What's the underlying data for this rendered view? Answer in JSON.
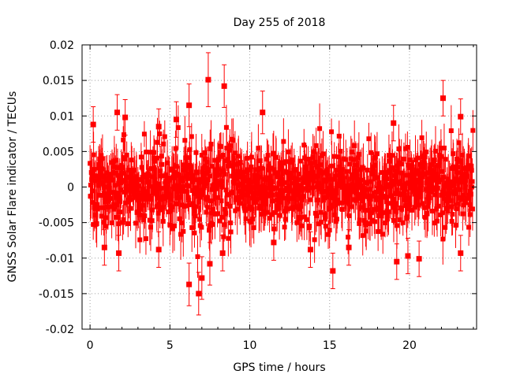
{
  "chart_data": {
    "type": "scatter",
    "title": "Day 255 of 2018",
    "xlabel": "GPS time / hours",
    "ylabel": "GNSS Solar Flare indicator / TECUs",
    "xlim": [
      -0.5,
      24.2
    ],
    "ylim": [
      -0.02,
      0.02
    ],
    "x_ticks": [
      0,
      5,
      10,
      15,
      20
    ],
    "x_tick_labels": [
      "0",
      "5",
      "10",
      "15",
      "20"
    ],
    "y_ticks": [
      -0.02,
      -0.015,
      -0.01,
      -0.005,
      0,
      0.005,
      0.01,
      0.015,
      0.02
    ],
    "y_tick_labels": [
      "-0.02",
      "-0.015",
      "-0.01",
      "-0.005",
      "0",
      "0.005",
      "0.01",
      "0.015",
      "0.02"
    ],
    "grid": true,
    "marker": "square",
    "colors": {
      "series": "#ff0000",
      "grid": "#a0a0a0",
      "axis": "#000000"
    },
    "series": [
      {
        "name": "solar flare indicator",
        "error_bar_typical": 0.003,
        "highlight_points": [
          {
            "x": 7.4,
            "y": 0.0151,
            "err": 0.0038
          },
          {
            "x": 8.4,
            "y": 0.0142,
            "err": 0.003
          },
          {
            "x": 22.1,
            "y": 0.0125,
            "err": 0.0025
          },
          {
            "x": 6.2,
            "y": 0.0115,
            "err": 0.003
          },
          {
            "x": 10.8,
            "y": 0.0105,
            "err": 0.003
          },
          {
            "x": 1.7,
            "y": 0.0105,
            "err": 0.0025
          },
          {
            "x": 23.2,
            "y": 0.0099,
            "err": 0.0025
          },
          {
            "x": 5.4,
            "y": 0.0095,
            "err": 0.0025
          },
          {
            "x": 2.2,
            "y": 0.0098,
            "err": 0.0025
          },
          {
            "x": 0.2,
            "y": 0.0088,
            "err": 0.0025
          },
          {
            "x": 4.3,
            "y": 0.0085,
            "err": 0.0025
          },
          {
            "x": 19.0,
            "y": 0.009,
            "err": 0.0025
          },
          {
            "x": 15.2,
            "y": -0.0118,
            "err": 0.0025
          },
          {
            "x": 6.2,
            "y": -0.0137,
            "err": 0.003
          },
          {
            "x": 6.8,
            "y": -0.015,
            "err": 0.003
          },
          {
            "x": 7.0,
            "y": -0.0128,
            "err": 0.003
          },
          {
            "x": 7.5,
            "y": -0.0108,
            "err": 0.003
          },
          {
            "x": 8.3,
            "y": -0.0093,
            "err": 0.0025
          },
          {
            "x": 1.8,
            "y": -0.0093,
            "err": 0.0025
          },
          {
            "x": 19.2,
            "y": -0.0105,
            "err": 0.0025
          },
          {
            "x": 20.6,
            "y": -0.0101,
            "err": 0.0025
          },
          {
            "x": 19.9,
            "y": -0.0097,
            "err": 0.0025
          },
          {
            "x": 23.2,
            "y": -0.0093,
            "err": 0.0025
          },
          {
            "x": 4.3,
            "y": -0.0088,
            "err": 0.0025
          },
          {
            "x": 0.9,
            "y": -0.0085,
            "err": 0.0025
          },
          {
            "x": 11.5,
            "y": -0.0078,
            "err": 0.0025
          },
          {
            "x": 16.2,
            "y": -0.0085,
            "err": 0.0025
          },
          {
            "x": 13.8,
            "y": -0.0088,
            "err": 0.0025
          }
        ]
      }
    ]
  }
}
